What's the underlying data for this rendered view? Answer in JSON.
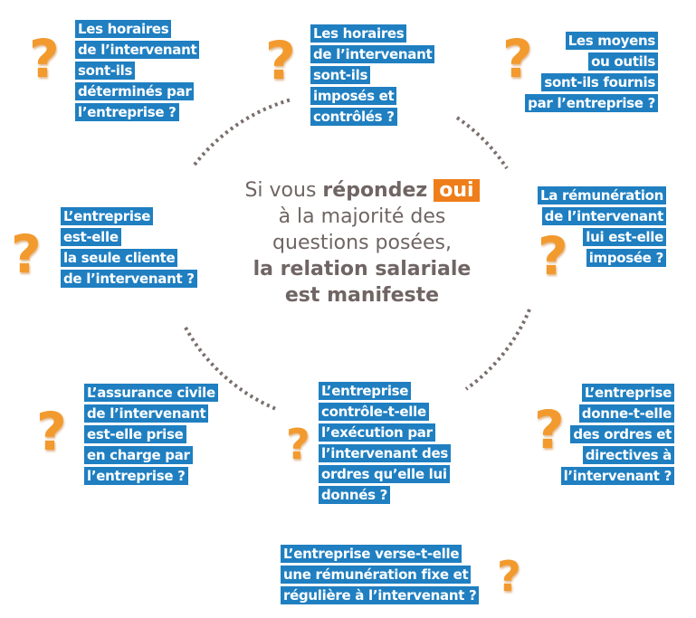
{
  "center": {
    "line1_prefix": "Si vous",
    "line1_bold": "répondez",
    "highlight": "oui",
    "line2": "à la majorité des",
    "line3": "questions posées,",
    "line4": "la relation salariale",
    "line5": "est manifeste"
  },
  "colors": {
    "box": "#1f7fc1",
    "accent": "#ee7d1a",
    "question_mark": "#f29a2e",
    "text": "#6f6563"
  },
  "icon": "question-mark-icon",
  "icon_glyph": "?",
  "questions": [
    {
      "lines": [
        "Les horaires",
        "de l’intervenant",
        "sont-ils",
        "déterminés par",
        "l’entreprise ?"
      ]
    },
    {
      "lines": [
        "Les horaires",
        "de l’intervenant",
        "sont-ils",
        "imposés et",
        "contrôlés ?"
      ]
    },
    {
      "lines": [
        "Les moyens",
        "ou outils",
        "sont-ils fournis",
        "par l’entreprise ?"
      ]
    },
    {
      "lines": [
        "La rémunération",
        "de l’intervenant",
        "lui est-elle",
        "imposée ?"
      ]
    },
    {
      "lines": [
        "L’entreprise",
        "est-elle",
        "la seule cliente",
        "de l’intervenant ?"
      ]
    },
    {
      "lines": [
        "L’assurance civile",
        "de l’intervenant",
        "est-elle prise",
        "en charge par",
        "l’entreprise ?"
      ]
    },
    {
      "lines": [
        "L’entreprise",
        "contrôle-t-elle",
        "l’exécution par",
        "l’intervenant des",
        "ordres qu’elle lui",
        "donnés ?"
      ]
    },
    {
      "lines": [
        "L’entreprise",
        "donne-t-elle",
        "des ordres et",
        "directives à",
        "l’intervenant ?"
      ]
    },
    {
      "lines": [
        "L’entreprise verse-t-elle",
        "une rémunération fixe et",
        "régulière à l’intervenant ?"
      ]
    }
  ]
}
